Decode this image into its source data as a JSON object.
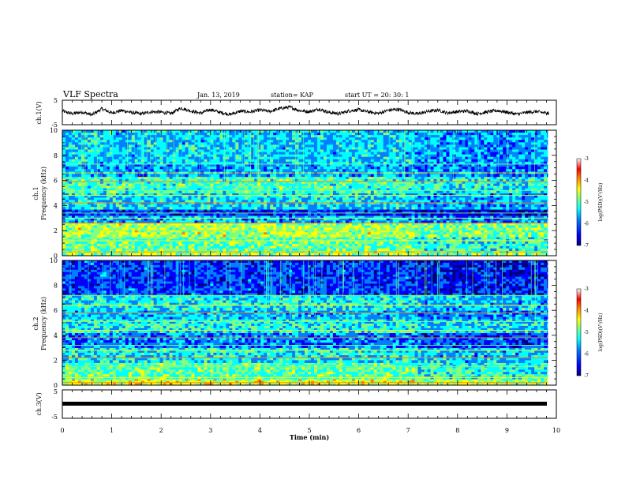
{
  "header": {
    "title": "VLF Spectra",
    "date": "Jan. 13, 2019",
    "station": "station= KAP",
    "start": "start  UT =   20: 30: 1"
  },
  "colors": {
    "colormap": [
      "#00007f",
      "#0000ff",
      "#0080ff",
      "#00ffff",
      "#80ff80",
      "#ffff00",
      "#ff8000",
      "#ff0000",
      "#ffffff"
    ]
  },
  "chart_data": [
    {
      "type": "line",
      "panel": "ch1-waveform",
      "ylabel": "ch.1(V)",
      "ylim": [
        -5,
        5
      ],
      "yticks": [
        "5",
        "-5"
      ],
      "xlim": [
        0,
        10
      ],
      "trace_description": "noisy waveform around 0 V, mostly between -1.5 and 2.5 V",
      "x": [
        0.0,
        0.2,
        0.4,
        0.6,
        0.8,
        1.0,
        1.2,
        1.4,
        1.6,
        1.8,
        2.0,
        2.2,
        2.4,
        2.6,
        2.8,
        3.0,
        3.2,
        3.4,
        3.6,
        3.8,
        4.0,
        4.2,
        4.4,
        4.6,
        4.8,
        5.0,
        5.2,
        5.4,
        5.6,
        5.8,
        6.0,
        6.2,
        6.4,
        6.6,
        6.8,
        7.0,
        7.2,
        7.4,
        7.6,
        7.8,
        8.0,
        8.2,
        8.4,
        8.6,
        8.8,
        9.0,
        9.2,
        9.4,
        9.6,
        9.8
      ],
      "y": [
        0.5,
        -0.5,
        0.2,
        -1.0,
        1.5,
        -0.2,
        0.8,
        0.0,
        -0.6,
        0.3,
        0.1,
        -0.4,
        1.8,
        0.6,
        -0.3,
        1.2,
        0.0,
        -0.8,
        0.5,
        0.2,
        1.0,
        0.4,
        1.6,
        2.2,
        0.8,
        0.3,
        1.4,
        0.0,
        -0.5,
        0.6,
        1.1,
        0.2,
        -0.4,
        0.9,
        1.3,
        0.0,
        -0.6,
        0.4,
        1.0,
        -0.2,
        0.3,
        0.6,
        -0.5,
        0.2,
        0.8,
        0.1,
        -0.7,
        0.0,
        0.4,
        -0.3
      ]
    },
    {
      "type": "heatmap",
      "panel": "ch1-spectrogram",
      "ylabel": "ch.1",
      "ylabel2": "Frequency (kHz)",
      "ylim": [
        0,
        10
      ],
      "yticks": [
        "0",
        "2",
        "4",
        "6",
        "8",
        "10"
      ],
      "xlim": [
        0,
        10
      ],
      "colorbar": {
        "label": "log(PSD)(V²/Hz)",
        "range": [
          -7,
          -3
        ],
        "ticks": [
          "-3",
          "-4",
          "-5",
          "-6",
          "-7"
        ]
      },
      "intensity_by_band": [
        {
          "from": 0.0,
          "to": 0.4,
          "level": -4.5
        },
        {
          "from": 0.4,
          "to": 1.5,
          "level": -4.9
        },
        {
          "from": 1.5,
          "to": 2.6,
          "level": -4.5
        },
        {
          "from": 2.6,
          "to": 3.2,
          "level": -5.6
        },
        {
          "from": 3.2,
          "to": 3.7,
          "level": -6.3
        },
        {
          "from": 3.7,
          "to": 5.0,
          "level": -5.4
        },
        {
          "from": 5.0,
          "to": 6.3,
          "level": -5.0
        },
        {
          "from": 6.3,
          "to": 7.3,
          "level": -5.7
        },
        {
          "from": 7.3,
          "to": 10.0,
          "level": -5.5
        }
      ],
      "harmonic_lines_khz": [
        0.3,
        1.2,
        2.0,
        2.6,
        3.0,
        3.4,
        4.2,
        4.8,
        5.2,
        5.9,
        6.6,
        7.3
      ]
    },
    {
      "type": "heatmap",
      "panel": "ch2-spectrogram",
      "ylabel": "ch.2",
      "ylabel2": "Frequency (kHz)",
      "ylim": [
        0,
        10
      ],
      "yticks": [
        "0",
        "2",
        "4",
        "6",
        "8",
        "10"
      ],
      "xlim": [
        0,
        10
      ],
      "colorbar": {
        "label": "log(PSD)(V²/Hz)",
        "range": [
          -7,
          -3
        ],
        "ticks": [
          "-3",
          "-4",
          "-5",
          "-6",
          "-7"
        ]
      },
      "intensity_by_band": [
        {
          "from": 0.0,
          "to": 0.5,
          "level": -4.3
        },
        {
          "from": 0.5,
          "to": 1.8,
          "level": -4.9
        },
        {
          "from": 1.8,
          "to": 3.0,
          "level": -5.3
        },
        {
          "from": 3.0,
          "to": 4.2,
          "level": -5.9
        },
        {
          "from": 4.2,
          "to": 5.3,
          "level": -5.2
        },
        {
          "from": 5.3,
          "to": 6.0,
          "level": -5.6
        },
        {
          "from": 6.0,
          "to": 7.2,
          "level": -5.3
        },
        {
          "from": 7.2,
          "to": 10.0,
          "level": -6.2
        }
      ],
      "harmonic_lines_khz": [
        0.2,
        0.6,
        1.5,
        2.2,
        2.8,
        3.2,
        3.8,
        4.4,
        5.1,
        5.8,
        6.4,
        7.2
      ]
    },
    {
      "type": "line",
      "panel": "ch3-waveform",
      "ylabel": "ch.3(V)",
      "ylim": [
        -5,
        5
      ],
      "yticks": [
        "5",
        "-5"
      ],
      "xlim": [
        0,
        10
      ],
      "xlabel": "Time (min)",
      "xticks": [
        "0",
        "1",
        "2",
        "3",
        "4",
        "5",
        "6",
        "7",
        "8",
        "9",
        "10"
      ],
      "x": [
        0,
        9.8
      ],
      "y": [
        0.0,
        0.0
      ]
    }
  ]
}
